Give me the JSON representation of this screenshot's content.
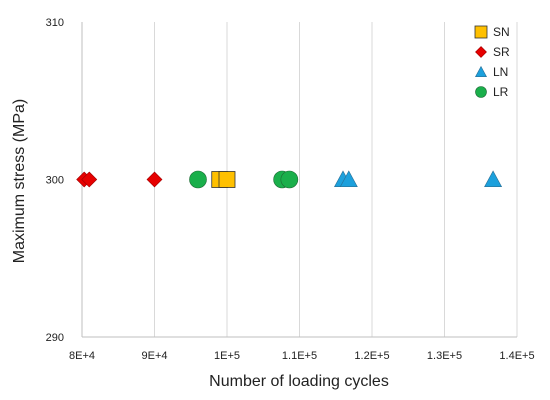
{
  "chart_data": {
    "type": "scatter",
    "title": "",
    "xlabel": "Number of loading cycles",
    "ylabel": "Maximum stress (MPa)",
    "xlim": [
      80000,
      140000
    ],
    "ylim": [
      290,
      310
    ],
    "x_ticks": [
      80000,
      90000,
      100000,
      110000,
      120000,
      130000,
      140000
    ],
    "x_tick_labels": [
      "8E+4",
      "9E+4",
      "1E+5",
      "1.1E+5",
      "1.2E+5",
      "1.3E+5",
      "1.4E+5"
    ],
    "y_ticks": [
      290,
      300,
      310
    ],
    "y_tick_labels": [
      "290",
      "300",
      "310"
    ],
    "grid": "vertical",
    "legend_position": "top-right",
    "series": [
      {
        "name": "SN",
        "marker": "square",
        "color": "#FFC000",
        "points": [
          [
            99000,
            300
          ],
          [
            100000,
            300
          ]
        ]
      },
      {
        "name": "SR",
        "marker": "diamond",
        "color": "#E60000",
        "points": [
          [
            80300,
            300
          ],
          [
            81000,
            300
          ],
          [
            90000,
            300
          ]
        ]
      },
      {
        "name": "LN",
        "marker": "triangle",
        "color": "#1CA0DC",
        "points": [
          [
            116000,
            300
          ],
          [
            116800,
            300
          ],
          [
            136700,
            300
          ]
        ]
      },
      {
        "name": "LR",
        "marker": "circle",
        "color": "#1AAF4B",
        "points": [
          [
            96000,
            300
          ],
          [
            107600,
            300
          ],
          [
            108600,
            300
          ]
        ]
      }
    ]
  }
}
